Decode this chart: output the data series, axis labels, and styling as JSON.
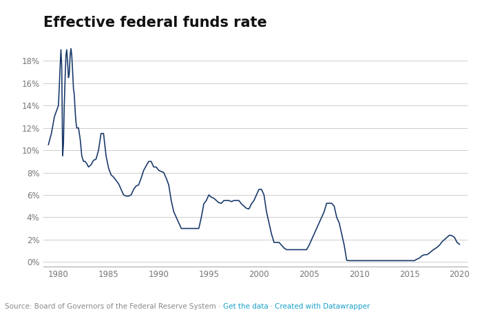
{
  "title": "Effective federal funds rate",
  "line_color": "#1a3a6b",
  "background_color": "#ffffff",
  "grid_color": "#cccccc",
  "source_text": "Source: Board of Governors of the Federal Reserve System · ",
  "source_link1": "Get the data",
  "source_sep": " · ",
  "source_link2": "Created with Datawrapper",
  "link_color": "#18a0c8",
  "source_color": "#888888",
  "yticks": [
    0,
    2,
    4,
    6,
    8,
    10,
    12,
    14,
    16,
    18
  ],
  "ylim": [
    -0.4,
    20.0
  ],
  "xlim": [
    1978.5,
    2020.8
  ],
  "xticks": [
    1980,
    1985,
    1990,
    1995,
    2000,
    2005,
    2010,
    2015,
    2020
  ],
  "data": {
    "years": [
      1979.0,
      1979.3,
      1979.6,
      1980.0,
      1980.08,
      1980.17,
      1980.25,
      1980.33,
      1980.42,
      1980.5,
      1980.58,
      1980.67,
      1980.75,
      1980.83,
      1980.92,
      1981.0,
      1981.08,
      1981.17,
      1981.25,
      1981.33,
      1981.42,
      1981.5,
      1981.58,
      1981.67,
      1981.75,
      1981.83,
      1981.92,
      1982.0,
      1982.17,
      1982.33,
      1982.5,
      1982.67,
      1982.83,
      1983.0,
      1983.25,
      1983.5,
      1983.75,
      1984.0,
      1984.25,
      1984.5,
      1984.75,
      1985.0,
      1985.25,
      1985.5,
      1985.75,
      1986.0,
      1986.25,
      1986.5,
      1986.75,
      1987.0,
      1987.25,
      1987.5,
      1987.75,
      1988.0,
      1988.25,
      1988.5,
      1988.75,
      1989.0,
      1989.25,
      1989.5,
      1989.75,
      1990.0,
      1990.25,
      1990.5,
      1990.75,
      1991.0,
      1991.25,
      1991.5,
      1991.75,
      1992.0,
      1992.25,
      1992.5,
      1992.75,
      1993.0,
      1993.25,
      1993.5,
      1993.75,
      1994.0,
      1994.25,
      1994.5,
      1994.75,
      1995.0,
      1995.25,
      1995.5,
      1995.75,
      1996.0,
      1996.25,
      1996.5,
      1996.75,
      1997.0,
      1997.25,
      1997.5,
      1997.75,
      1998.0,
      1998.25,
      1998.5,
      1998.75,
      1999.0,
      1999.25,
      1999.5,
      1999.75,
      2000.0,
      2000.25,
      2000.5,
      2000.75,
      2001.0,
      2001.25,
      2001.5,
      2001.75,
      2002.0,
      2002.25,
      2002.5,
      2002.75,
      2003.0,
      2003.25,
      2003.5,
      2003.75,
      2004.0,
      2004.25,
      2004.5,
      2004.75,
      2005.0,
      2005.25,
      2005.5,
      2005.75,
      2006.0,
      2006.25,
      2006.5,
      2006.75,
      2007.0,
      2007.25,
      2007.5,
      2007.75,
      2008.0,
      2008.25,
      2008.5,
      2008.75,
      2009.0,
      2009.25,
      2009.5,
      2009.75,
      2010.0,
      2010.25,
      2010.5,
      2010.75,
      2011.0,
      2011.5,
      2012.0,
      2012.5,
      2013.0,
      2013.5,
      2014.0,
      2014.5,
      2015.0,
      2015.25,
      2015.5,
      2015.75,
      2016.0,
      2016.25,
      2016.5,
      2016.75,
      2017.0,
      2017.25,
      2017.5,
      2017.75,
      2018.0,
      2018.25,
      2018.5,
      2018.75,
      2019.0,
      2019.25,
      2019.5,
      2019.75,
      2020.0
    ],
    "rates": [
      10.5,
      11.5,
      13.0,
      14.0,
      15.5,
      17.5,
      19.0,
      17.5,
      9.5,
      10.5,
      14.0,
      16.5,
      18.5,
      19.0,
      17.8,
      16.5,
      16.8,
      18.5,
      19.1,
      18.5,
      17.0,
      15.5,
      15.0,
      13.5,
      12.5,
      12.0,
      12.0,
      12.0,
      11.0,
      9.5,
      9.0,
      9.0,
      8.8,
      8.5,
      8.7,
      9.1,
      9.2,
      10.0,
      11.5,
      11.5,
      9.5,
      8.4,
      7.8,
      7.6,
      7.3,
      7.0,
      6.5,
      6.0,
      5.9,
      5.9,
      6.0,
      6.5,
      6.8,
      6.9,
      7.5,
      8.2,
      8.6,
      9.0,
      9.0,
      8.5,
      8.5,
      8.2,
      8.1,
      8.0,
      7.5,
      6.9,
      5.5,
      4.5,
      4.0,
      3.5,
      3.0,
      3.0,
      3.0,
      3.0,
      3.0,
      3.0,
      3.0,
      3.0,
      4.0,
      5.2,
      5.5,
      6.0,
      5.8,
      5.7,
      5.5,
      5.3,
      5.25,
      5.5,
      5.5,
      5.5,
      5.4,
      5.5,
      5.5,
      5.5,
      5.2,
      5.0,
      4.8,
      4.75,
      5.2,
      5.5,
      6.0,
      6.5,
      6.5,
      6.0,
      4.5,
      3.5,
      2.5,
      1.75,
      1.75,
      1.75,
      1.5,
      1.25,
      1.1,
      1.1,
      1.1,
      1.1,
      1.1,
      1.1,
      1.1,
      1.1,
      1.1,
      1.5,
      2.0,
      2.5,
      3.0,
      3.5,
      4.0,
      4.5,
      5.25,
      5.25,
      5.25,
      5.0,
      4.0,
      3.5,
      2.5,
      1.5,
      0.15,
      0.12,
      0.12,
      0.12,
      0.12,
      0.12,
      0.12,
      0.12,
      0.12,
      0.12,
      0.12,
      0.12,
      0.12,
      0.12,
      0.12,
      0.12,
      0.12,
      0.12,
      0.12,
      0.12,
      0.25,
      0.35,
      0.55,
      0.65,
      0.65,
      0.8,
      1.0,
      1.16,
      1.3,
      1.5,
      1.8,
      2.0,
      2.2,
      2.4,
      2.35,
      2.2,
      1.75,
      1.58
    ]
  }
}
